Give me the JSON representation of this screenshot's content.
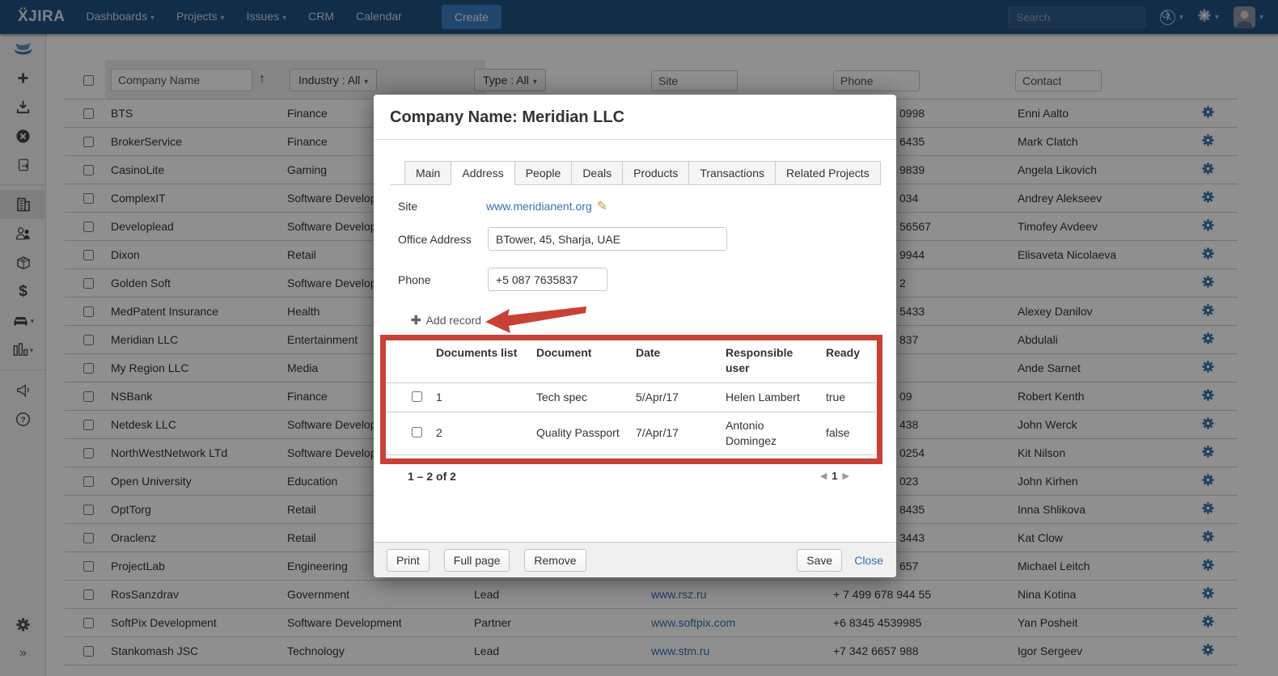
{
  "nav": {
    "logo_text": "ẌJIRA",
    "items": [
      {
        "label": "Dashboards",
        "caret": true
      },
      {
        "label": "Projects",
        "caret": true
      },
      {
        "label": "Issues",
        "caret": true
      },
      {
        "label": "CRM",
        "caret": false
      },
      {
        "label": "Calendar",
        "caret": false
      }
    ],
    "create_label": "Create",
    "search_placeholder": "Search",
    "right_icons": [
      "help-icon",
      "gear-icon",
      "user-avatar"
    ]
  },
  "sidebar": {
    "items": [
      {
        "icon": "crm-logo-icon"
      },
      {
        "icon": "add-icon"
      },
      {
        "icon": "import-icon"
      },
      {
        "icon": "cancel-icon"
      },
      {
        "icon": "export-document-icon"
      },
      {
        "icon": "separator"
      },
      {
        "icon": "companies-icon",
        "active": true
      },
      {
        "icon": "contacts-icon"
      },
      {
        "icon": "products-icon"
      },
      {
        "icon": "finance-icon"
      },
      {
        "icon": "garage-icon",
        "caret": true
      },
      {
        "icon": "reports-icon",
        "caret": true
      },
      {
        "icon": "separator"
      },
      {
        "icon": "announcement-icon"
      },
      {
        "icon": "help-circle-icon"
      }
    ],
    "bottom_icons": [
      "settings-gear-icon",
      "collapse-icon"
    ]
  },
  "filters": {
    "company_placeholder": "Company Name",
    "sort_indicator": "↑",
    "industry_label": "Industry : All",
    "type_label": "Type : All",
    "site_placeholder": "Site",
    "phone_placeholder": "Phone",
    "contact_placeholder": "Contact"
  },
  "table": {
    "rows": [
      {
        "company": "BTS",
        "industry": "Finance",
        "type": "",
        "site": "",
        "phone": "0998",
        "contact": "Enni Aalto",
        "covered": true
      },
      {
        "company": "BrokerService",
        "industry": "Finance",
        "type": "",
        "site": "",
        "phone": "6435",
        "contact": "Mark Clatch",
        "covered": true
      },
      {
        "company": "CasinoLite",
        "industry": "Gaming",
        "type": "",
        "site": "",
        "phone": "9839",
        "contact": "Angela Likovich",
        "covered": true
      },
      {
        "company": "ComplexIT",
        "industry": "Software Development",
        "type": "",
        "site": "",
        "phone": "034",
        "contact": "Andrey Alekseev",
        "covered": true
      },
      {
        "company": "Developlead",
        "industry": "Software Development",
        "type": "",
        "site": "",
        "phone": "56567",
        "contact": "Timofey Avdeev",
        "covered": true
      },
      {
        "company": "Dixon",
        "industry": "Retail",
        "type": "",
        "site": "",
        "phone": "9944",
        "contact": "Elisaveta Nicolaeva",
        "covered": true
      },
      {
        "company": "Golden Soft",
        "industry": "Software Development",
        "type": "",
        "site": "",
        "phone": "2",
        "contact": "",
        "covered": true
      },
      {
        "company": "MedPatent Insurance",
        "industry": "Health",
        "type": "",
        "site": "",
        "phone": "5433",
        "contact": "Alexey Danilov",
        "covered": true
      },
      {
        "company": "Meridian LLC",
        "industry": "Entertainment",
        "type": "",
        "site": "",
        "phone": "837",
        "contact": "Abdulali",
        "covered": true
      },
      {
        "company": "My Region LLC",
        "industry": "Media",
        "type": "",
        "site": "",
        "phone": "",
        "contact": "Ande Sarnet",
        "covered": true
      },
      {
        "company": "NSBank",
        "industry": "Finance",
        "type": "",
        "site": "",
        "phone": "09",
        "contact": "Robert Kenth",
        "covered": true
      },
      {
        "company": "Netdesk LLC",
        "industry": "Software Development",
        "type": "",
        "site": "",
        "phone": "438",
        "contact": "John Werck",
        "covered": true
      },
      {
        "company": "NorthWestNetwork LTd",
        "industry": "Software Development",
        "type": "",
        "site": "",
        "phone": "0254",
        "contact": "Kit Nilson",
        "covered": true
      },
      {
        "company": "Open University",
        "industry": "Education",
        "type": "",
        "site": "",
        "phone": "023",
        "contact": "John Kirhen",
        "covered": true
      },
      {
        "company": "OptTorg",
        "industry": "Retail",
        "type": "",
        "site": "",
        "phone": "8435",
        "contact": "Inna Shlikova",
        "covered": true
      },
      {
        "company": "Oraclenz",
        "industry": "Retail",
        "type": "",
        "site": "",
        "phone": "3443",
        "contact": "Kat Clow",
        "covered": true
      },
      {
        "company": "ProjectLab",
        "industry": "Engineering",
        "type": "",
        "site": "",
        "phone": "657",
        "contact": "Michael Leitch",
        "covered": true
      },
      {
        "company": "RosSanzdrav",
        "industry": "Government",
        "type": "Lead",
        "site": "www.rsz.ru",
        "phone": "+ 7 499 678 944 55",
        "contact": "Nina Kotina",
        "covered": false
      },
      {
        "company": "SoftPix Development",
        "industry": "Software Development",
        "type": "Partner",
        "site": "www.softpix.com",
        "phone": "+6 8345 4539985",
        "contact": "Yan Posheit",
        "covered": false
      },
      {
        "company": "Stankomash JSC",
        "industry": "Technology",
        "type": "Lead",
        "site": "www.stm.ru",
        "phone": "+7 342 6657 988",
        "contact": "Igor Sergeev",
        "covered": false
      }
    ]
  },
  "dialog": {
    "title": "Company Name: Meridian LLC",
    "tabs": [
      "Main",
      "Address",
      "People",
      "Deals",
      "Products",
      "Transactions",
      "Related Projects"
    ],
    "active_tab": "Address",
    "fields": {
      "site_label": "Site",
      "site_value": "www.meridianent.org",
      "office_label": "Office Address",
      "office_value": "BTower, 45, Sharja, UAE",
      "phone_label": "Phone",
      "phone_value": "+5 087 7635837"
    },
    "add_record_label": "Add record",
    "documents": {
      "headers": [
        "Documents list",
        "Document",
        "Date",
        "Responsible user",
        "Ready"
      ],
      "rows": [
        {
          "num": "1",
          "document": "Tech spec",
          "date": "5/Apr/17",
          "user": "Helen Lambert",
          "ready": "true"
        },
        {
          "num": "2",
          "document": "Quality Passport",
          "date": "7/Apr/17",
          "user": "Antonio Domingez",
          "ready": "false"
        }
      ]
    },
    "pagination": {
      "range_label": "1 – 2 of 2",
      "page": "1",
      "prev": "◀",
      "next": "▶"
    },
    "buttons": {
      "print": "Print",
      "full_page": "Full page",
      "remove": "Remove",
      "save": "Save",
      "close": "Close"
    }
  },
  "colors": {
    "nav_bg": "#205081",
    "accent_blue": "#3b7fc4",
    "link_blue": "#3572b0",
    "gear_blue": "#3b73a8",
    "annotation_red": "#c94134"
  }
}
